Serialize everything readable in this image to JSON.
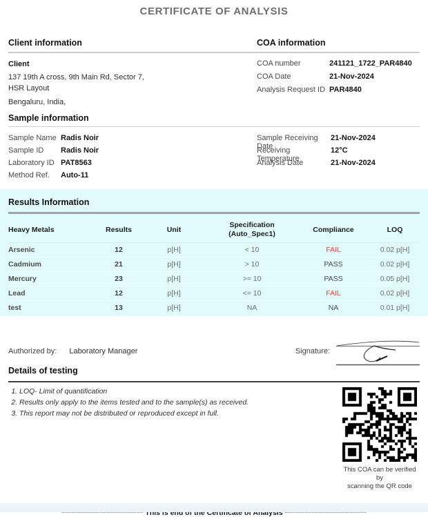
{
  "title": "CERTIFICATE OF ANALYSIS",
  "client_info": {
    "heading": "Client information",
    "name": "Client",
    "address_line1": "137 19th A cross, 9th Main Rd, Sector 7,",
    "address_line2": "HSR Layout",
    "address_line3": "Bengaluru, India,"
  },
  "coa_info": {
    "heading": "COA information",
    "fields": [
      {
        "label": "COA number",
        "value": "241121_1722_PAR4840"
      },
      {
        "label": "COA Date",
        "value": "21-Nov-2024"
      },
      {
        "label": "Analysis Request ID",
        "value": "PAR4840"
      }
    ]
  },
  "sample_info": {
    "heading": "Sample information",
    "left_fields": [
      {
        "label": "Sample Name",
        "value": "Radis Noir"
      },
      {
        "label": "Sample ID",
        "value": "Radis Noir"
      },
      {
        "label": "Laboratory ID",
        "value": "PAT8563"
      },
      {
        "label": "Method Ref.",
        "value": "Auto-11"
      }
    ],
    "right_fields": [
      {
        "label": "Sample Receiving Date",
        "value": "21-Nov-2024"
      },
      {
        "label": "Receiving Temperature",
        "value": "12°C"
      },
      {
        "label": "Analysis Date",
        "value": "21-Nov-2024"
      }
    ]
  },
  "results": {
    "heading": "Results Information",
    "columns": {
      "metal": "Heavy Metals",
      "result": "Results",
      "unit": "Unit",
      "spec_line1": "Specification",
      "spec_line2": "(Auto_Spec1)",
      "compliance": "Compliance",
      "loq": "LOQ"
    },
    "rows": [
      {
        "metal": "Arsenic",
        "result": "12",
        "unit": "p[H]",
        "spec": "< 10",
        "compliance": "FAIL",
        "loq": "0.02 p[H]"
      },
      {
        "metal": "Cadmium",
        "result": "21",
        "unit": "p[H]",
        "spec": "> 10",
        "compliance": "PASS",
        "loq": "0.02 p[H]"
      },
      {
        "metal": "Mercury",
        "result": "23",
        "unit": "p[H]",
        "spec": ">= 10",
        "compliance": "PASS",
        "loq": "0.05 p[H]"
      },
      {
        "metal": "Lead",
        "result": "12",
        "unit": "p[H]",
        "spec": "<= 10",
        "compliance": "FAIL",
        "loq": "0.02 p[H]"
      },
      {
        "metal": "test",
        "result": "13",
        "unit": "p[H]",
        "spec": "NA",
        "compliance": "NA",
        "loq": "0.01 p[H]"
      }
    ]
  },
  "authorization": {
    "label": "Authorized by:",
    "value": "Laboratory Manager",
    "signature_label": "Signature:"
  },
  "details": {
    "heading": "Details of testing",
    "notes": [
      "LOQ- Limit of quantification",
      "Results only apply to the items tested and to the sample(s) as received.",
      "This report may not be distributed or reproduced except in full."
    ],
    "qr_caption_line1": "This COA can be verified by",
    "qr_caption_line2": "scanning the QR code"
  },
  "footer": {
    "text": "***************************** This is end of the Certificate of Analysis *****************************"
  },
  "colors": {
    "accent_cyan": "#e1fafb",
    "fail_red": "#f63b3b",
    "title_gray": "#6c6f72"
  }
}
